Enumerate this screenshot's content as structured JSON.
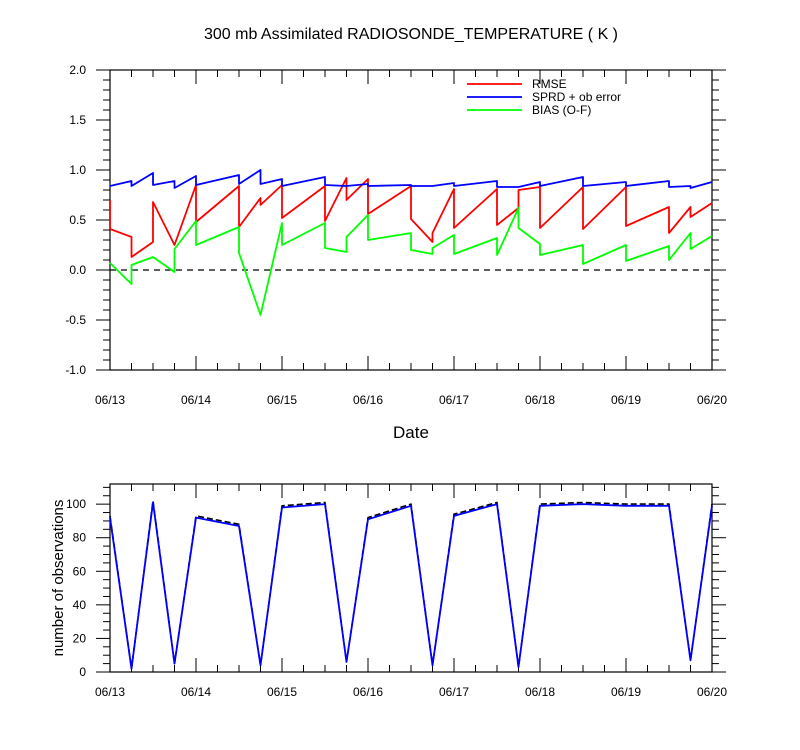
{
  "chart_data": [
    {
      "type": "line",
      "title": "300 mb Assimilated RADIOSONDE_TEMPERATURE ( K )",
      "xlabel": "Date",
      "ylabel": "",
      "xlim": [
        0,
        7
      ],
      "ylim": [
        -1.0,
        2.0
      ],
      "yticks": [
        -1.0,
        -0.5,
        0.0,
        0.5,
        1.0,
        1.5,
        2.0
      ],
      "ytick_labels": [
        "-1.0",
        "-0.5",
        "0.0",
        "0.5",
        "1.0",
        "1.5",
        "2.0"
      ],
      "xticks": [
        0,
        1,
        2,
        3,
        4,
        5,
        6,
        7
      ],
      "xtick_labels": [
        "06/13",
        "06/14",
        "06/15",
        "06/16",
        "06/17",
        "06/18",
        "06/19",
        "06/20"
      ],
      "zero_line": {
        "y": 0.0,
        "style": "dashed"
      },
      "legend_position": "top-right",
      "series": [
        {
          "name": "RMSE",
          "color": "#ff0000",
          "x": [
            0.0,
            0.0,
            0.25,
            0.25,
            0.5,
            0.5,
            0.75,
            0.75,
            1.0,
            1.0,
            1.5,
            1.5,
            1.75,
            1.75,
            2.0,
            2.0,
            2.5,
            2.5,
            2.75,
            2.75,
            3.0,
            3.0,
            3.5,
            3.5,
            3.75,
            3.75,
            4.0,
            4.0,
            4.5,
            4.5,
            4.75,
            4.75,
            5.0,
            5.0,
            5.5,
            5.5,
            6.0,
            6.0,
            6.5,
            6.5,
            6.75,
            6.75,
            7.0
          ],
          "y": [
            0.7,
            0.41,
            0.33,
            0.13,
            0.28,
            0.68,
            0.25,
            0.25,
            0.85,
            0.48,
            0.84,
            0.43,
            0.72,
            0.65,
            0.85,
            0.52,
            0.84,
            0.49,
            0.92,
            0.7,
            0.91,
            0.56,
            0.84,
            0.51,
            0.28,
            0.37,
            0.81,
            0.42,
            0.81,
            0.45,
            0.62,
            0.8,
            0.83,
            0.42,
            0.83,
            0.41,
            0.83,
            0.44,
            0.63,
            0.37,
            0.63,
            0.53,
            0.67
          ]
        },
        {
          "name": "SPRD + ob error",
          "color": "#0000ff",
          "x": [
            0.0,
            0.25,
            0.25,
            0.5,
            0.5,
            0.75,
            0.75,
            1.0,
            1.0,
            1.5,
            1.5,
            1.75,
            1.75,
            2.0,
            2.0,
            2.5,
            2.5,
            2.75,
            2.75,
            3.0,
            3.0,
            3.5,
            3.5,
            3.75,
            3.75,
            4.0,
            4.0,
            4.5,
            4.5,
            4.75,
            4.75,
            5.0,
            5.0,
            5.5,
            5.5,
            6.0,
            6.0,
            6.5,
            6.5,
            6.75,
            6.75,
            7.0
          ],
          "y": [
            0.84,
            0.89,
            0.84,
            0.97,
            0.85,
            0.89,
            0.82,
            0.94,
            0.85,
            0.95,
            0.86,
            1.0,
            0.86,
            0.91,
            0.84,
            0.93,
            0.85,
            0.84,
            0.84,
            0.86,
            0.84,
            0.85,
            0.84,
            0.84,
            0.84,
            0.87,
            0.84,
            0.89,
            0.83,
            0.83,
            0.83,
            0.88,
            0.84,
            0.93,
            0.84,
            0.88,
            0.84,
            0.89,
            0.83,
            0.84,
            0.82,
            0.88
          ]
        },
        {
          "name": "BIAS (O-F)",
          "color": "#00ff00",
          "x": [
            0.0,
            0.25,
            0.25,
            0.5,
            0.75,
            0.75,
            1.0,
            1.0,
            1.5,
            1.5,
            1.75,
            2.0,
            2.0,
            2.5,
            2.5,
            2.75,
            2.75,
            3.0,
            3.0,
            3.5,
            3.5,
            3.75,
            3.75,
            4.0,
            4.0,
            4.5,
            4.5,
            4.75,
            4.75,
            5.0,
            5.0,
            5.5,
            5.5,
            6.0,
            6.0,
            6.5,
            6.5,
            6.75,
            6.75,
            7.0
          ],
          "y": [
            0.07,
            -0.14,
            0.05,
            0.13,
            -0.02,
            0.21,
            0.49,
            0.25,
            0.43,
            0.17,
            -0.45,
            0.47,
            0.25,
            0.47,
            0.22,
            0.18,
            0.33,
            0.55,
            0.3,
            0.37,
            0.2,
            0.16,
            0.22,
            0.35,
            0.16,
            0.32,
            0.15,
            0.62,
            0.42,
            0.26,
            0.15,
            0.25,
            0.06,
            0.25,
            0.09,
            0.24,
            0.1,
            0.37,
            0.21,
            0.34
          ]
        }
      ]
    },
    {
      "type": "line",
      "title": "",
      "xlabel": "",
      "ylabel": "number of observations",
      "xlim": [
        0,
        7
      ],
      "ylim": [
        0,
        112
      ],
      "yticks": [
        0,
        20,
        40,
        60,
        80,
        100
      ],
      "ytick_labels": [
        "0",
        "20",
        "40",
        "60",
        "80",
        "100"
      ],
      "xticks": [
        0,
        1,
        2,
        3,
        4,
        5,
        6,
        7
      ],
      "xtick_labels": [
        "06/13",
        "06/14",
        "06/15",
        "06/16",
        "06/17",
        "06/18",
        "06/19",
        "06/20"
      ],
      "series": [
        {
          "name": "",
          "color": "#000000",
          "style": "dashed",
          "x": [
            0.0,
            0.25,
            0.5,
            0.75,
            1.0,
            1.5,
            1.75,
            2.0,
            2.5,
            2.75,
            3.0,
            3.5,
            3.75,
            4.0,
            4.5,
            4.75,
            5.0,
            5.5,
            6.0,
            6.5,
            6.75,
            7.0
          ],
          "y": [
            93,
            2,
            102,
            5,
            93,
            88,
            4,
            99,
            101,
            6,
            92,
            100,
            4,
            94,
            101,
            3,
            100,
            101,
            100,
            100,
            7,
            100
          ]
        },
        {
          "name": "",
          "color": "#0000ff",
          "style": "solid",
          "x": [
            0.0,
            0.25,
            0.5,
            0.75,
            1.0,
            1.5,
            1.75,
            2.0,
            2.5,
            2.75,
            3.0,
            3.5,
            3.75,
            4.0,
            4.5,
            4.75,
            5.0,
            5.5,
            6.0,
            6.5,
            6.75,
            7.0
          ],
          "y": [
            92,
            2,
            101,
            5,
            92,
            87,
            4,
            98,
            100,
            6,
            91,
            99,
            4,
            93,
            100,
            3,
            99,
            100,
            99,
            99,
            7,
            99
          ]
        }
      ]
    }
  ]
}
